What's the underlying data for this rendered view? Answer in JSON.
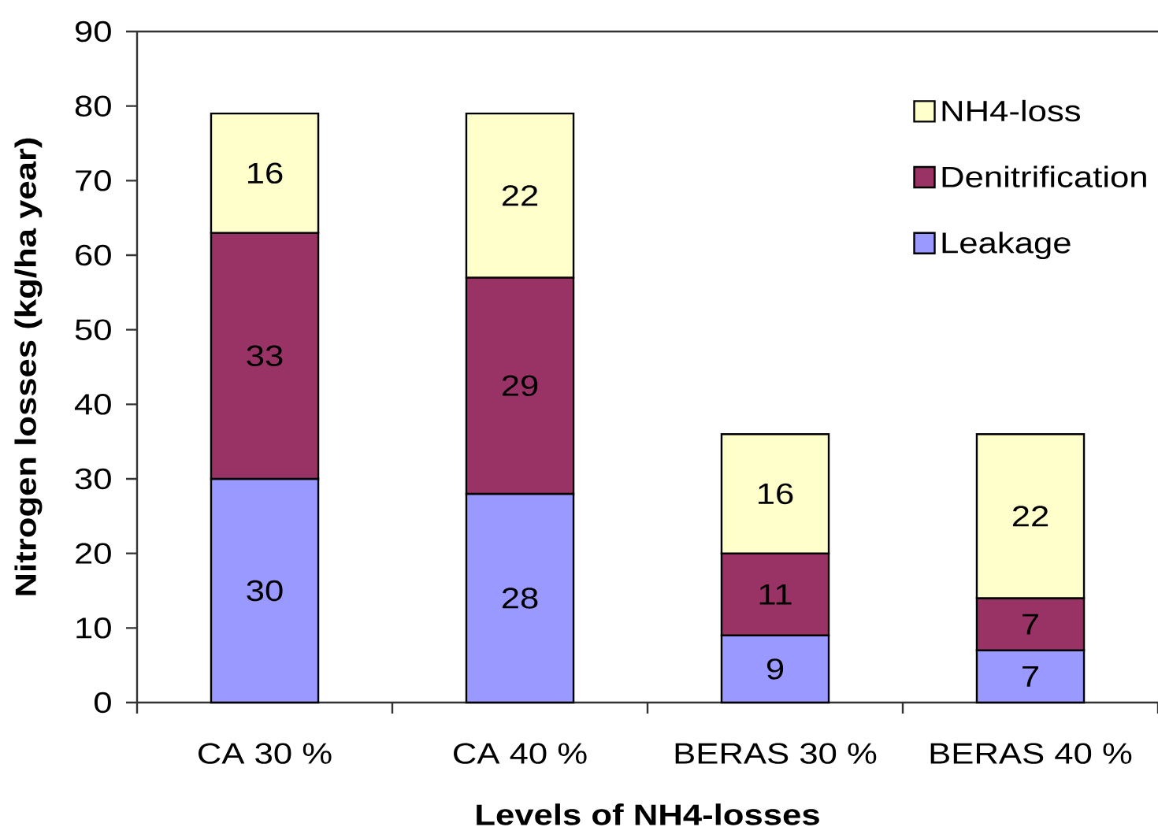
{
  "chart_data": {
    "type": "bar",
    "stacked": true,
    "xlabel": "Levels of NH4-losses",
    "ylabel": "Nitrogen losses (kg/ha year)",
    "categories": [
      "CA 30 %",
      "CA 40 %",
      "BERAS 30 %",
      "BERAS 40 %"
    ],
    "series": [
      {
        "name": "Leakage",
        "color": "#9999ff",
        "values": [
          30,
          28,
          9,
          7
        ]
      },
      {
        "name": "Denitrification",
        "color": "#993366",
        "values": [
          33,
          29,
          11,
          7
        ]
      },
      {
        "name": "NH4-loss",
        "color": "#ffffcc",
        "values": [
          16,
          22,
          16,
          22
        ]
      }
    ],
    "ylim": [
      0,
      90
    ],
    "yticks": [
      0,
      10,
      20,
      30,
      40,
      50,
      60,
      70,
      80,
      90
    ],
    "data_labels": true,
    "legend": "top right"
  }
}
